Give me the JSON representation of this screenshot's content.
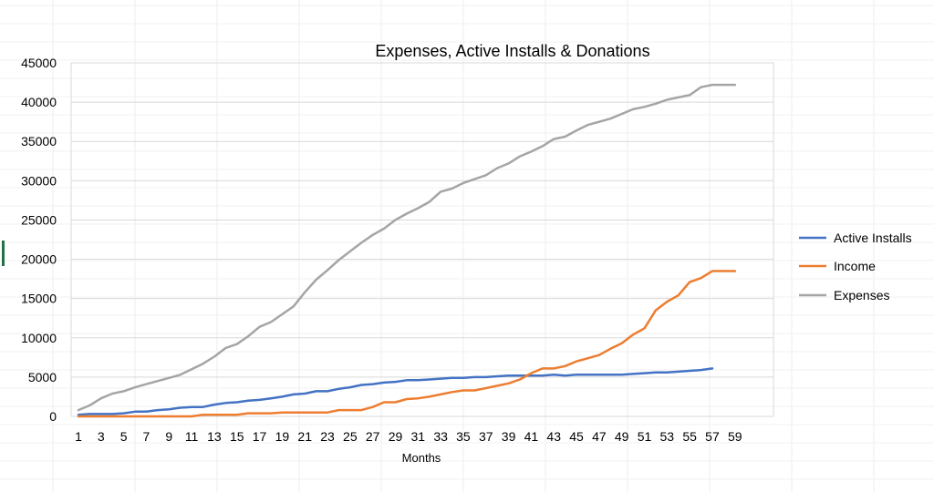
{
  "chart_data": {
    "type": "line",
    "title": "Expenses, Active Installs & Donations",
    "xlabel": "Months",
    "ylabel": "",
    "ylim": [
      0,
      45000
    ],
    "yticks": [
      0,
      5000,
      10000,
      15000,
      20000,
      25000,
      30000,
      35000,
      40000,
      45000
    ],
    "x": [
      1,
      2,
      3,
      4,
      5,
      6,
      7,
      8,
      9,
      10,
      11,
      12,
      13,
      14,
      15,
      16,
      17,
      18,
      19,
      20,
      21,
      22,
      23,
      24,
      25,
      26,
      27,
      28,
      29,
      30,
      31,
      32,
      33,
      34,
      35,
      36,
      37,
      38,
      39,
      40,
      41,
      42,
      43,
      44,
      45,
      46,
      47,
      48,
      49,
      50,
      51,
      52,
      53,
      54,
      55,
      56,
      57,
      58,
      59
    ],
    "xtick_labels": [
      "1",
      "3",
      "5",
      "7",
      "9",
      "11",
      "13",
      "15",
      "17",
      "19",
      "21",
      "23",
      "25",
      "27",
      "29",
      "31",
      "33",
      "35",
      "37",
      "39",
      "41",
      "43",
      "45",
      "47",
      "49",
      "51",
      "53",
      "55",
      "57",
      "59"
    ],
    "grid": true,
    "legend_position": "right",
    "series": [
      {
        "name": "Active Installs",
        "color": "#4472C4",
        "values": [
          200,
          300,
          300,
          300,
          400,
          600,
          600,
          800,
          900,
          1100,
          1200,
          1200,
          1500,
          1700,
          1800,
          2000,
          2100,
          2300,
          2500,
          2800,
          2900,
          3200,
          3200,
          3500,
          3700,
          4000,
          4100,
          4300,
          4400,
          4600,
          4600,
          4700,
          4800,
          4900,
          4900,
          5000,
          5000,
          5100,
          5200,
          5200,
          5200,
          5200,
          5300,
          5200,
          5300,
          5300,
          5300,
          5300,
          5300,
          5400,
          5500,
          5600,
          5600,
          5700,
          5800,
          5900,
          6100,
          null,
          null
        ]
      },
      {
        "name": "Income",
        "color": "#ED7D31",
        "values": [
          0,
          0,
          0,
          0,
          0,
          0,
          0,
          0,
          0,
          0,
          0,
          200,
          200,
          200,
          200,
          400,
          400,
          400,
          500,
          500,
          500,
          500,
          500,
          800,
          800,
          800,
          1200,
          1800,
          1800,
          2200,
          2300,
          2500,
          2800,
          3100,
          3300,
          3300,
          3600,
          3900,
          4200,
          4700,
          5500,
          6100,
          6100,
          6400,
          7000,
          7400,
          7800,
          8600,
          9300,
          10400,
          11200,
          13500,
          14600,
          15400,
          17100,
          17600,
          18500,
          18500,
          18500
        ]
      },
      {
        "name": "Expenses",
        "color": "#A5A5A5",
        "values": [
          800,
          1400,
          2300,
          2900,
          3200,
          3700,
          4100,
          4500,
          4900,
          5300,
          6000,
          6700,
          7600,
          8700,
          9200,
          10200,
          11400,
          12000,
          13000,
          14000,
          15800,
          17400,
          18600,
          19900,
          21000,
          22100,
          23100,
          23900,
          25000,
          25800,
          26500,
          27300,
          28600,
          29000,
          29700,
          30200,
          30700,
          31600,
          32200,
          33100,
          33700,
          34400,
          35300,
          35600,
          36400,
          37100,
          37500,
          37900,
          38500,
          39100,
          39400,
          39800,
          40300,
          40600,
          40900,
          41900,
          42200,
          42200,
          42200
        ]
      }
    ]
  }
}
